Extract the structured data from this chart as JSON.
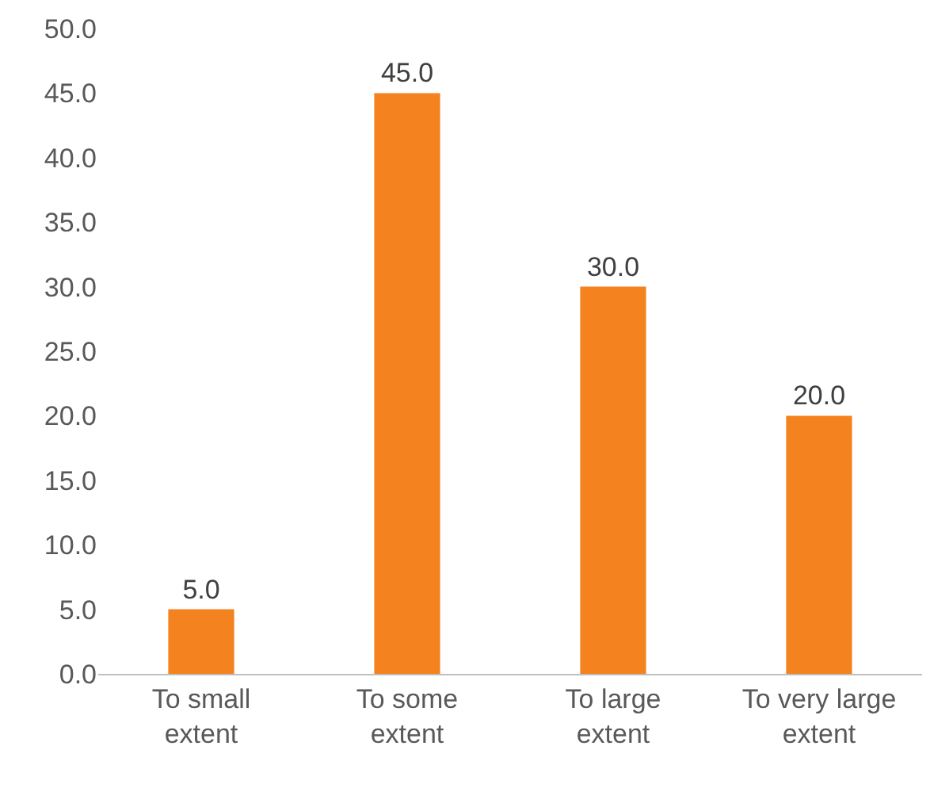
{
  "chart_data": {
    "type": "bar",
    "categories": [
      "To small extent",
      "To some extent",
      "To large extent",
      "To very large extent"
    ],
    "values": [
      5,
      45,
      30,
      20
    ],
    "color": "#f4821f",
    "value_labels": [
      "5.0",
      "45.0",
      "30.0",
      "20.0"
    ],
    "ylim": [
      0,
      50
    ],
    "yticks": [
      {
        "value": 0,
        "label": "0.0"
      },
      {
        "value": 5,
        "label": "5.0"
      },
      {
        "value": 10,
        "label": "10.0"
      },
      {
        "value": 15,
        "label": "15.0"
      },
      {
        "value": 20,
        "label": "20.0"
      },
      {
        "value": 25,
        "label": "25.0"
      },
      {
        "value": 30,
        "label": "30.0"
      },
      {
        "value": 35,
        "label": "35.0"
      },
      {
        "value": 40,
        "label": "40.0"
      },
      {
        "value": 45,
        "label": "45.0"
      },
      {
        "value": 50,
        "label": "50.0"
      }
    ]
  }
}
